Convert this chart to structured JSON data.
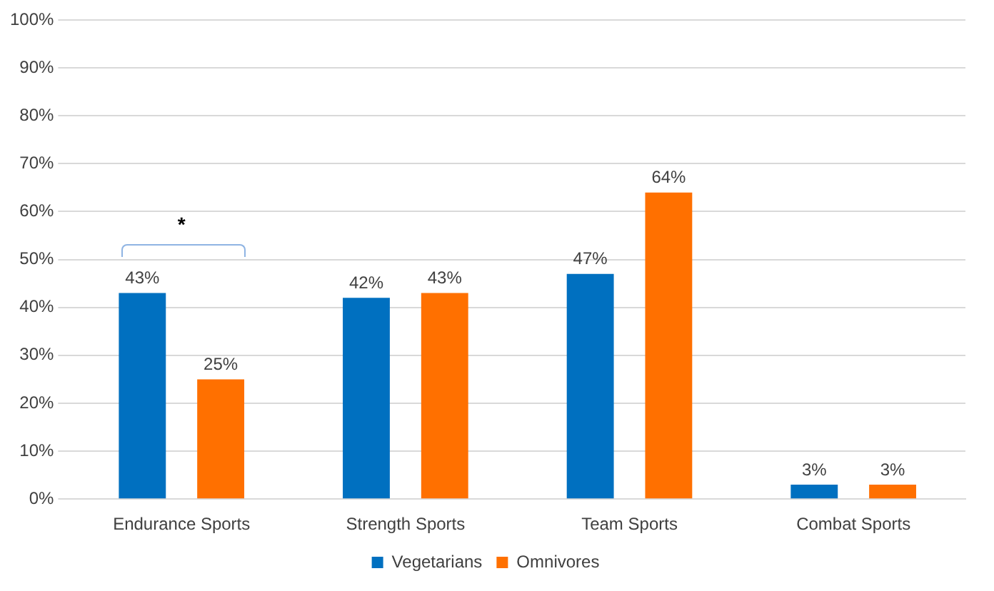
{
  "chart_data": {
    "type": "bar",
    "categories": [
      "Endurance Sports",
      "Strength Sports",
      "Team Sports",
      "Combat Sports"
    ],
    "series": [
      {
        "name": "Vegetarians",
        "color": "#0070c0",
        "values": [
          43,
          42,
          47,
          3
        ],
        "value_labels": [
          "43%",
          "42%",
          "47%",
          "3%"
        ]
      },
      {
        "name": "Omnivores",
        "color": "#ff7000",
        "values": [
          25,
          43,
          64,
          3
        ],
        "value_labels": [
          "25%",
          "43%",
          "64%",
          "3%"
        ]
      }
    ],
    "ylim": [
      0,
      100
    ],
    "yticks": [
      {
        "value": 0,
        "label": "0%"
      },
      {
        "value": 10,
        "label": "10%"
      },
      {
        "value": 20,
        "label": "20%"
      },
      {
        "value": 30,
        "label": "30%"
      },
      {
        "value": 40,
        "label": "40%"
      },
      {
        "value": 50,
        "label": "50%"
      },
      {
        "value": 60,
        "label": "60%"
      },
      {
        "value": 70,
        "label": "70%"
      },
      {
        "value": 80,
        "label": "80%"
      },
      {
        "value": 90,
        "label": "90%"
      },
      {
        "value": 100,
        "label": "100%"
      }
    ],
    "grid": "y",
    "legend": "bottom",
    "annotations": [
      "*"
    ]
  }
}
